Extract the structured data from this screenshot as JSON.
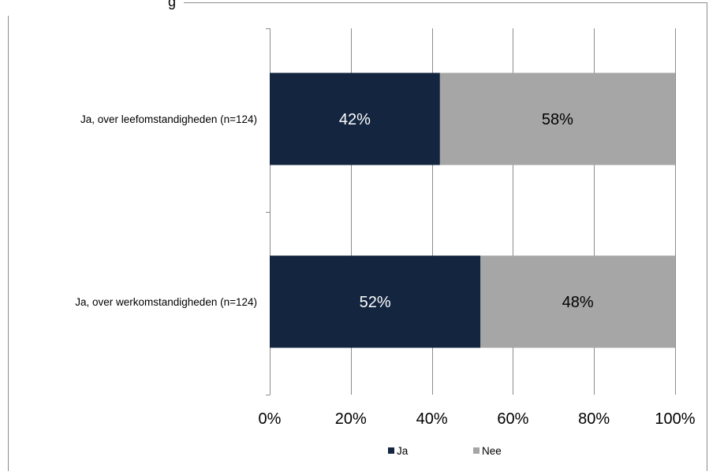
{
  "chart_data": {
    "type": "bar",
    "orientation": "horizontal",
    "stacked": true,
    "percent_stacked": true,
    "title_fragment": "g",
    "categories": [
      "Ja, over leefomstandigheden (n=124)",
      "Ja, over werkomstandigheden (n=124)"
    ],
    "series": [
      {
        "name": "Ja",
        "values": [
          42,
          52
        ],
        "labels": [
          "42%",
          "52%"
        ],
        "color": "#13253f",
        "label_color": "#ffffff"
      },
      {
        "name": "Nee",
        "values": [
          58,
          48
        ],
        "labels": [
          "58%",
          "48%"
        ],
        "color": "#a6a6a6",
        "label_color": "#000000"
      }
    ],
    "xlim": [
      0,
      100
    ],
    "xticks": [
      0,
      20,
      40,
      60,
      80,
      100
    ],
    "xtick_labels": [
      "0%",
      "20%",
      "40%",
      "60%",
      "80%",
      "100%"
    ],
    "grid": "vertical",
    "legend": {
      "position": "bottom",
      "entries": [
        "Ja",
        "Nee"
      ]
    },
    "xlabel": "",
    "ylabel": ""
  }
}
